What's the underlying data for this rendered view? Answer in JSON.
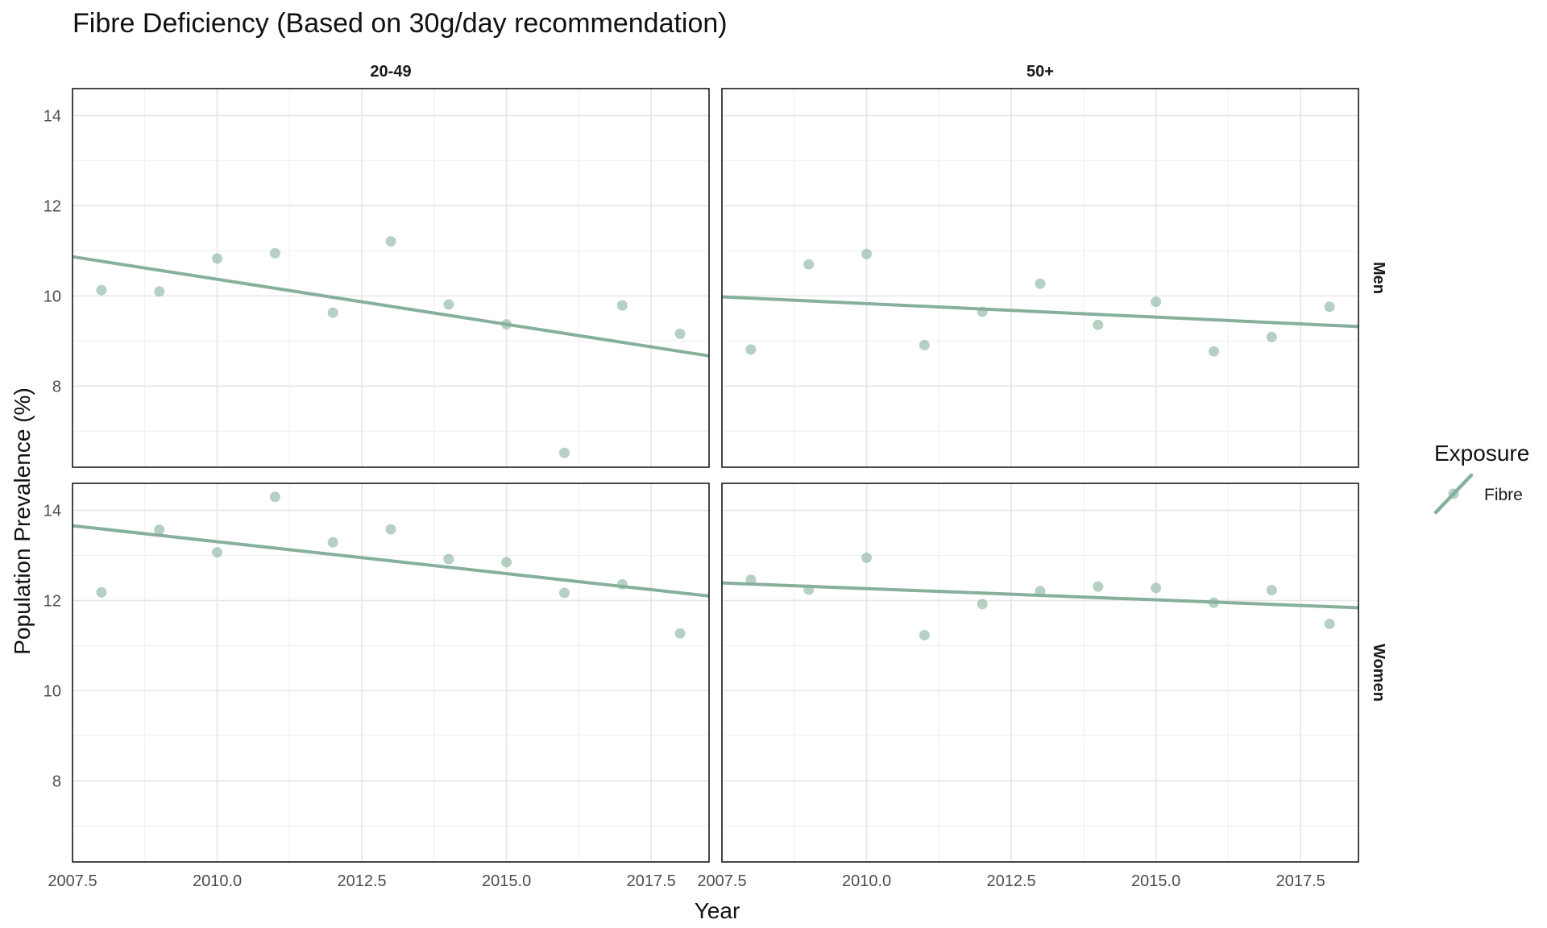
{
  "chart_data": {
    "type": "scatter",
    "title": "Fibre Deficiency (Based on 30g/day recommendation)",
    "xlabel": "Year",
    "ylabel": "Population Prevalence (%)",
    "xlim": [
      2007.5,
      2018.5
    ],
    "ylim": [
      6.2,
      14.6
    ],
    "x_ticks": [
      2007.5,
      2010.0,
      2012.5,
      2015.0,
      2017.5
    ],
    "x_tick_labels": [
      "2007.5",
      "2010.0",
      "2012.5",
      "2015.0",
      "2017.5"
    ],
    "y_ticks": [
      8,
      10,
      12,
      14
    ],
    "y_tick_labels": [
      "8",
      "10",
      "12",
      "14"
    ],
    "grid": true,
    "legend": {
      "title": "Exposure",
      "placement": "right",
      "entries": [
        {
          "label": "Fibre",
          "color": "#86b09b"
        }
      ]
    },
    "series_color": "#86b09b",
    "columns": [
      "20-49",
      "50+"
    ],
    "rows": [
      "Men",
      "Women"
    ],
    "panels": [
      {
        "column": "20-49",
        "row": "Men",
        "points": [
          {
            "x": 2008,
            "y": 10.13
          },
          {
            "x": 2009,
            "y": 10.1
          },
          {
            "x": 2010,
            "y": 10.83
          },
          {
            "x": 2011,
            "y": 10.95
          },
          {
            "x": 2012,
            "y": 9.63
          },
          {
            "x": 2013,
            "y": 11.21
          },
          {
            "x": 2014,
            "y": 9.81
          },
          {
            "x": 2015,
            "y": 9.37
          },
          {
            "x": 2016,
            "y": 6.52
          },
          {
            "x": 2017,
            "y": 9.79
          },
          {
            "x": 2018,
            "y": 9.16
          }
        ],
        "trend": [
          {
            "x": 2007.5,
            "y": 10.87
          },
          {
            "x": 2018.5,
            "y": 8.67
          }
        ]
      },
      {
        "column": "50+",
        "row": "Men",
        "points": [
          {
            "x": 2008,
            "y": 8.81
          },
          {
            "x": 2009,
            "y": 10.7
          },
          {
            "x": 2010,
            "y": 10.93
          },
          {
            "x": 2011,
            "y": 8.91
          },
          {
            "x": 2012,
            "y": 9.65
          },
          {
            "x": 2013,
            "y": 10.27
          },
          {
            "x": 2014,
            "y": 9.36
          },
          {
            "x": 2015,
            "y": 9.87
          },
          {
            "x": 2016,
            "y": 8.77
          },
          {
            "x": 2017,
            "y": 9.09
          },
          {
            "x": 2018,
            "y": 9.76
          }
        ],
        "trend": [
          {
            "x": 2007.5,
            "y": 9.98
          },
          {
            "x": 2018.5,
            "y": 9.32
          }
        ]
      },
      {
        "column": "20-49",
        "row": "Women",
        "points": [
          {
            "x": 2008,
            "y": 12.18
          },
          {
            "x": 2009,
            "y": 13.57
          },
          {
            "x": 2010,
            "y": 13.07
          },
          {
            "x": 2011,
            "y": 14.3
          },
          {
            "x": 2012,
            "y": 13.29
          },
          {
            "x": 2013,
            "y": 13.58
          },
          {
            "x": 2014,
            "y": 12.92
          },
          {
            "x": 2015,
            "y": 12.85
          },
          {
            "x": 2016,
            "y": 12.17
          },
          {
            "x": 2017,
            "y": 12.36
          },
          {
            "x": 2018,
            "y": 11.27
          }
        ],
        "trend": [
          {
            "x": 2007.5,
            "y": 13.66
          },
          {
            "x": 2018.5,
            "y": 12.1
          }
        ]
      },
      {
        "column": "50+",
        "row": "Women",
        "points": [
          {
            "x": 2008,
            "y": 12.46
          },
          {
            "x": 2009,
            "y": 12.24
          },
          {
            "x": 2010,
            "y": 12.95
          },
          {
            "x": 2011,
            "y": 11.23
          },
          {
            "x": 2012,
            "y": 11.92
          },
          {
            "x": 2013,
            "y": 12.21
          },
          {
            "x": 2014,
            "y": 12.31
          },
          {
            "x": 2015,
            "y": 12.28
          },
          {
            "x": 2016,
            "y": 11.95
          },
          {
            "x": 2017,
            "y": 12.23
          },
          {
            "x": 2018,
            "y": 11.48
          }
        ],
        "trend": [
          {
            "x": 2007.5,
            "y": 12.39
          },
          {
            "x": 2018.5,
            "y": 11.84
          }
        ]
      }
    ]
  }
}
